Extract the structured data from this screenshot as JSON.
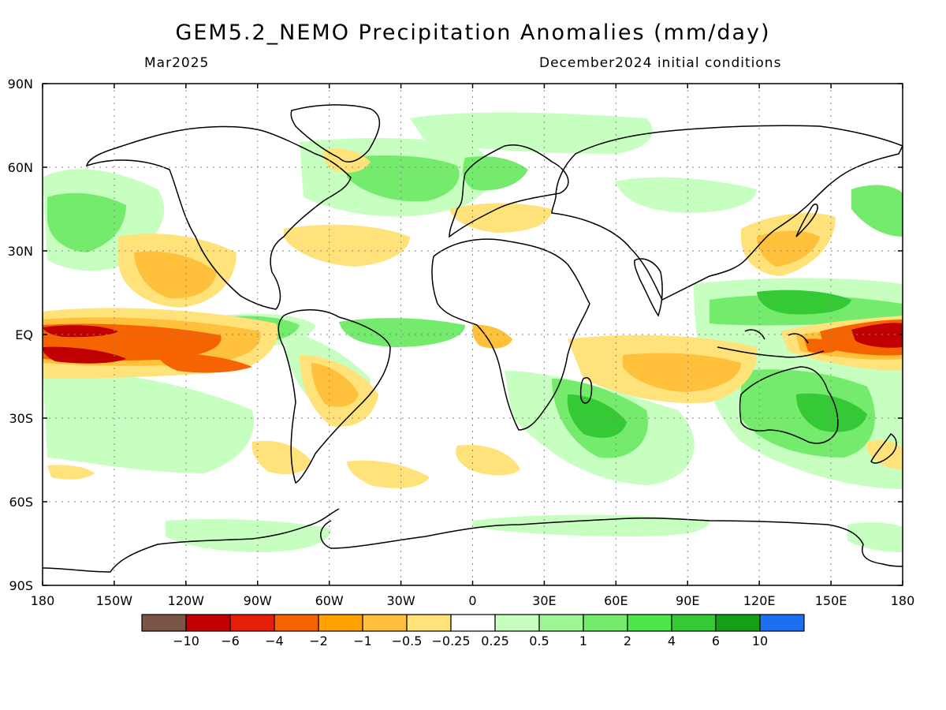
{
  "title": "GEM5.2_NEMO Precipitation Anomalies (mm/day)",
  "subtitle_left": "Mar2025",
  "subtitle_right": "December2024 initial conditions",
  "lat_labels": [
    "90N",
    "60N",
    "30N",
    "EQ",
    "30S",
    "60S",
    "90S"
  ],
  "lon_labels": [
    "180",
    "150W",
    "120W",
    "90W",
    "60W",
    "30W",
    "0",
    "30E",
    "60E",
    "90E",
    "120E",
    "150E",
    "180"
  ],
  "colorbar": {
    "colors": [
      "#7a5548",
      "#c00000",
      "#e61d08",
      "#f56400",
      "#ffa200",
      "#ffc03c",
      "#ffe27a",
      "#ffffff",
      "#c7ffc0",
      "#9ef595",
      "#74eb6c",
      "#4ee64a",
      "#35c935",
      "#14a014",
      "#1e6ef0"
    ],
    "ticks": [
      "−10",
      "−6",
      "−4",
      "−2",
      "−1",
      "−0.5",
      "−0.25",
      "0.25",
      "0.5",
      "1",
      "2",
      "4",
      "6",
      "10"
    ]
  },
  "palette": {
    "dry_extreme": "#c00000",
    "dry_strong": "#f56400",
    "dry_moderate": "#ffc03c",
    "dry_light": "#ffe27a",
    "wet_light": "#c7ffc0",
    "wet_moderate": "#74eb6c",
    "wet_strong": "#35c935"
  }
}
